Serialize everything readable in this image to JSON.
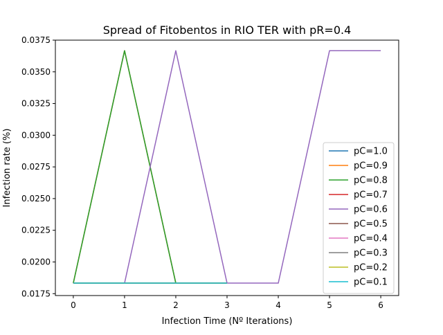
{
  "chart_data": {
    "type": "line",
    "title": "Spread of Fitobentos in RIO TER with pR=0.4",
    "xlabel": "Infection Time (Nº Iterations)",
    "ylabel": "Infection rate (%)",
    "xlim": [
      -0.35,
      6.35
    ],
    "ylim": [
      0.01735,
      0.0375
    ],
    "x_ticks": [
      0,
      1,
      2,
      3,
      4,
      5,
      6
    ],
    "x_tick_labels": [
      "0",
      "1",
      "2",
      "3",
      "4",
      "5",
      "6"
    ],
    "y_ticks": [
      0.0175,
      0.02,
      0.0225,
      0.025,
      0.0275,
      0.03,
      0.0325,
      0.035,
      0.0375
    ],
    "y_tick_labels": [
      "0.0175",
      "0.0200",
      "0.0225",
      "0.0250",
      "0.0275",
      "0.0300",
      "0.0325",
      "0.0350",
      "0.0375"
    ],
    "grid": false,
    "legend_position": "lower right",
    "series": [
      {
        "name": "pC=1.0",
        "color": "#1f77b4",
        "x": [
          0,
          1,
          2,
          3
        ],
        "y": [
          0.01833,
          0.03667,
          0.01833,
          0.01833
        ]
      },
      {
        "name": "pC=0.9",
        "color": "#ff7f0e",
        "x": [
          0,
          1,
          2,
          3
        ],
        "y": [
          0.01833,
          0.03667,
          0.01833,
          0.01833
        ]
      },
      {
        "name": "pC=0.8",
        "color": "#2ca02c",
        "x": [
          0,
          1,
          2,
          3
        ],
        "y": [
          0.01833,
          0.03667,
          0.01833,
          0.01833
        ]
      },
      {
        "name": "pC=0.7",
        "color": "#d62728",
        "x": [
          0,
          1,
          2,
          3
        ],
        "y": [
          0.01833,
          0.01833,
          0.01833,
          0.01833
        ]
      },
      {
        "name": "pC=0.6",
        "color": "#9467bd",
        "x": [
          0,
          1,
          2,
          3,
          4,
          5,
          6
        ],
        "y": [
          0.01833,
          0.01833,
          0.03667,
          0.01833,
          0.01833,
          0.03667,
          0.03667
        ]
      },
      {
        "name": "pC=0.5",
        "color": "#8c564b",
        "x": [
          0,
          1,
          2,
          3
        ],
        "y": [
          0.01833,
          0.01833,
          0.01833,
          0.01833
        ]
      },
      {
        "name": "pC=0.4",
        "color": "#e377c2",
        "x": [
          0,
          1,
          2,
          3
        ],
        "y": [
          0.01833,
          0.01833,
          0.01833,
          0.01833
        ]
      },
      {
        "name": "pC=0.3",
        "color": "#7f7f7f",
        "x": [
          0,
          1,
          2,
          3
        ],
        "y": [
          0.01833,
          0.01833,
          0.01833,
          0.01833
        ]
      },
      {
        "name": "pC=0.2",
        "color": "#bcbd22",
        "x": [
          0,
          1,
          2,
          3
        ],
        "y": [
          0.01833,
          0.01833,
          0.01833,
          0.01833
        ]
      },
      {
        "name": "pC=0.1",
        "color": "#17becf",
        "x": [
          0,
          1,
          2,
          3
        ],
        "y": [
          0.01833,
          0.01833,
          0.01833,
          0.01833
        ]
      }
    ]
  }
}
